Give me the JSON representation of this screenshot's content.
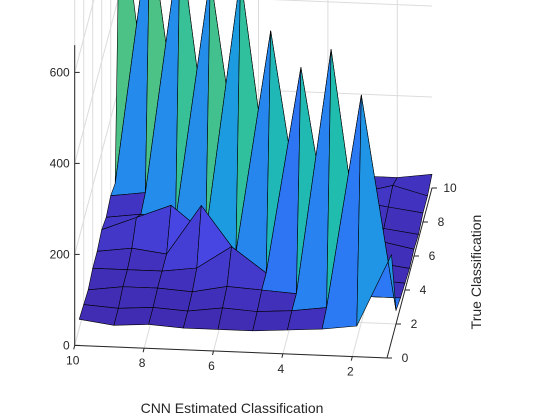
{
  "chart_data": {
    "type": "surface3d",
    "xlabel": "CNN Estimated Classification",
    "ylabel": "True Classification",
    "zlabel": "",
    "x_ticks": [
      2,
      4,
      6,
      8,
      10
    ],
    "y_ticks": [
      0,
      2,
      4,
      6,
      8,
      10
    ],
    "z_ticks": [
      0,
      200,
      400,
      600
    ],
    "zlim": [
      0,
      800
    ],
    "xlim": [
      1,
      10
    ],
    "ylim": [
      0,
      10
    ],
    "grid": true,
    "colormap": "parula",
    "colors": {
      "low": "#3e26a8",
      "mid": "#1c9fe0",
      "high": "#f9fb15",
      "edge": "#000000",
      "grid": "#dcdcdc",
      "axis": "#262626"
    },
    "x": [
      1,
      2,
      3,
      4,
      5,
      6,
      7,
      8,
      9,
      10
    ],
    "y": [
      1,
      2,
      3,
      4,
      5,
      6,
      7,
      8,
      9,
      10
    ],
    "z_note_rows_are_true_class_cols_are_estimated_class": "",
    "z": [
      [
        190,
        30,
        20,
        15,
        10,
        10,
        10,
        15,
        10,
        20
      ],
      [
        30,
        500,
        30,
        20,
        15,
        20,
        10,
        15,
        10,
        15
      ],
      [
        20,
        20,
        560,
        20,
        25,
        30,
        15,
        20,
        20,
        10
      ],
      [
        15,
        20,
        30,
        480,
        25,
        80,
        30,
        20,
        20,
        20
      ],
      [
        10,
        20,
        25,
        40,
        520,
        30,
        130,
        20,
        30,
        20
      ],
      [
        15,
        30,
        40,
        70,
        30,
        600,
        30,
        90,
        60,
        30
      ],
      [
        10,
        20,
        20,
        30,
        90,
        40,
        560,
        20,
        30,
        20
      ],
      [
        20,
        30,
        40,
        20,
        40,
        80,
        20,
        600,
        40,
        30
      ],
      [
        20,
        40,
        20,
        30,
        30,
        20,
        30,
        30,
        590,
        20
      ],
      [
        30,
        20,
        20,
        40,
        30,
        30,
        20,
        40,
        20,
        630
      ]
    ]
  }
}
